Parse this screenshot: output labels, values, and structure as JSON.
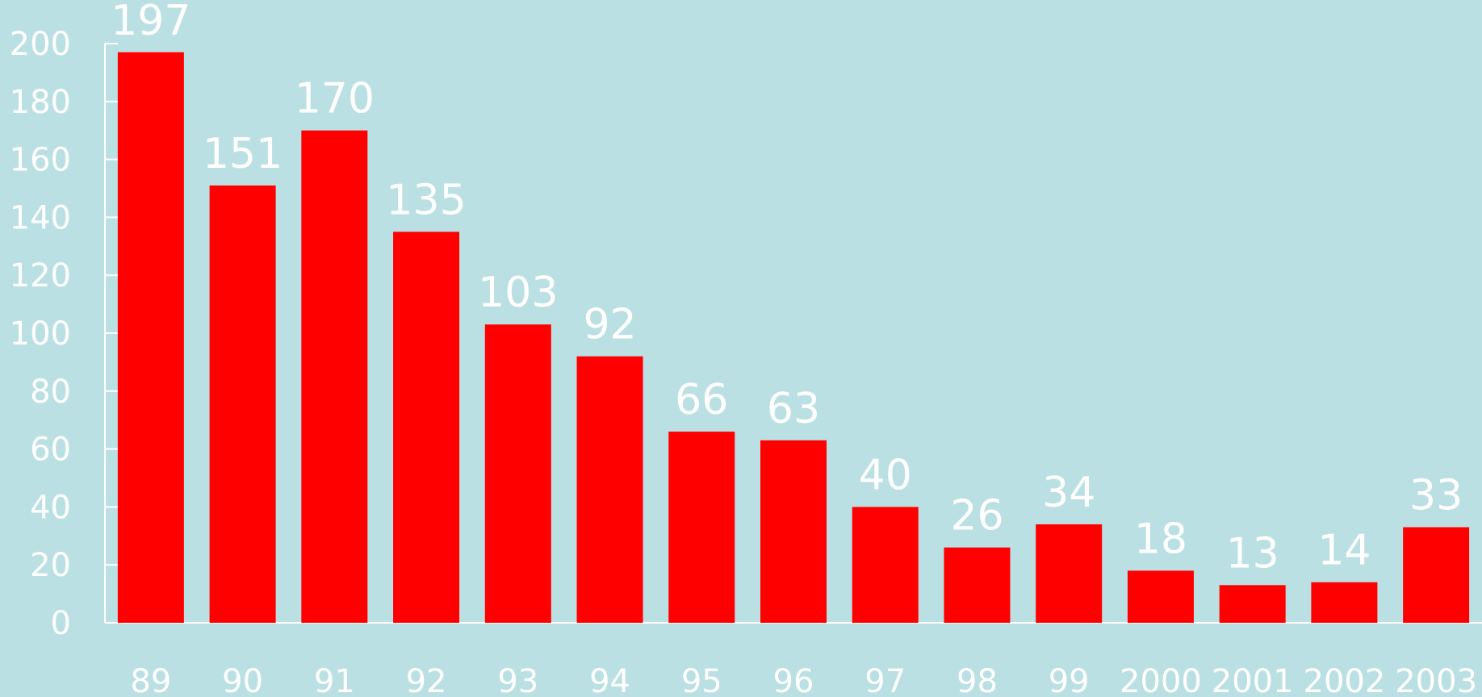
{
  "colors": {
    "background": "#bbe0e3",
    "bar": "#ff0000",
    "text": "#ffffff",
    "axis": "#ffffff"
  },
  "chart_data": {
    "type": "bar",
    "title": "",
    "xlabel": "",
    "ylabel": "",
    "categories": [
      "89",
      "90",
      "91",
      "92",
      "93",
      "94",
      "95",
      "96",
      "97",
      "98",
      "99",
      "2000",
      "2001",
      "2002",
      "2003"
    ],
    "values": [
      197,
      151,
      170,
      135,
      103,
      92,
      66,
      63,
      40,
      26,
      34,
      18,
      13,
      14,
      33
    ],
    "data_labels": [
      "197",
      "151",
      "170",
      "135",
      "103",
      "92",
      "66",
      "63",
      "40",
      "26",
      "34",
      "18",
      "13",
      "14",
      "33"
    ],
    "y_ticks": [
      "0",
      "20",
      "40",
      "60",
      "80",
      "100",
      "120",
      "140",
      "160",
      "180",
      "200"
    ],
    "ylim": [
      0,
      200
    ],
    "grid": false,
    "legend": "none"
  }
}
